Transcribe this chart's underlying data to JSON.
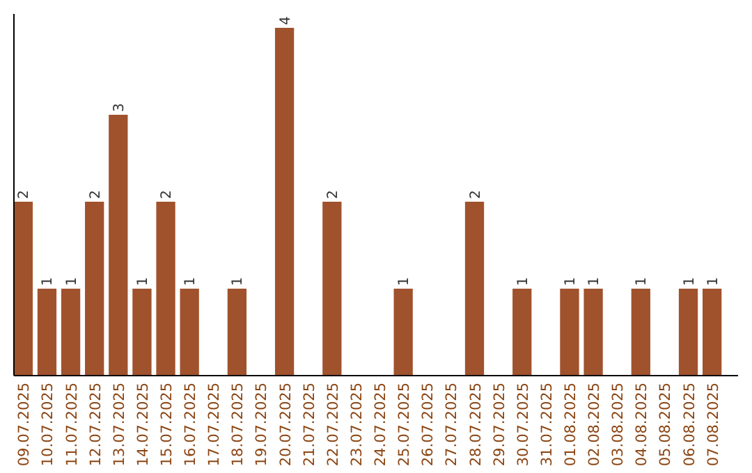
{
  "chart_data": {
    "type": "bar",
    "categories": [
      "09.07.2025",
      "10.07.2025",
      "11.07.2025",
      "12.07.2025",
      "13.07.2025",
      "14.07.2025",
      "15.07.2025",
      "16.07.2025",
      "17.07.2025",
      "18.07.2025",
      "19.07.2025",
      "20.07.2025",
      "21.07.2025",
      "22.07.2025",
      "23.07.2025",
      "24.07.2025",
      "25.07.2025",
      "26.07.2025",
      "27.07.2025",
      "28.07.2025",
      "29.07.2025",
      "30.07.2025",
      "31.07.2025",
      "01.08.2025",
      "02.08.2025",
      "03.08.2025",
      "04.08.2025",
      "05.08.2025",
      "06.08.2025",
      "07.08.2025"
    ],
    "values": [
      2,
      1,
      1,
      2,
      3,
      1,
      2,
      1,
      0,
      1,
      0,
      4,
      0,
      2,
      0,
      0,
      1,
      0,
      0,
      2,
      0,
      1,
      0,
      1,
      1,
      0,
      1,
      0,
      1,
      1
    ],
    "value_labels": [
      "2",
      "1",
      "1",
      "2",
      "3",
      "1",
      "2",
      "1",
      null,
      "1",
      null,
      "4",
      null,
      "2",
      null,
      null,
      "1",
      null,
      null,
      "2",
      null,
      "1",
      null,
      "1",
      "1",
      null,
      "1",
      null,
      "1",
      "1"
    ],
    "color": "#a0522d"
  }
}
